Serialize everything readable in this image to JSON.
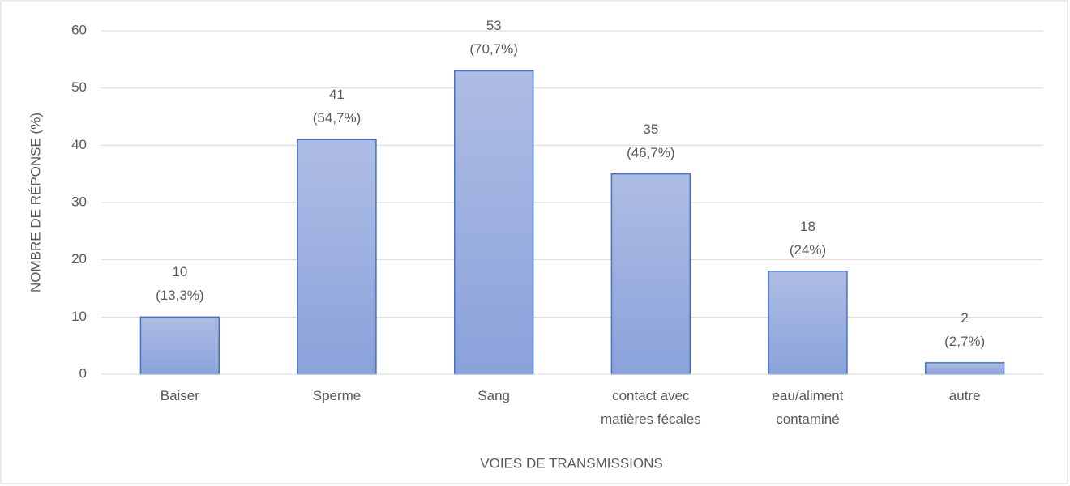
{
  "chart_data": {
    "type": "bar",
    "x_label": "VOIES DE TRANSMISSIONS",
    "y_label": "NOMBRE DE RÉPONSE (%)",
    "categories": [
      "Baiser",
      "Sperme",
      "Sang",
      "contact avec\nmatières fécales",
      "eau/aliment\ncontaminé",
      "autre"
    ],
    "values": [
      10,
      41,
      53,
      35,
      18,
      2
    ],
    "value_labels": [
      "10\n(13,3%)",
      "41\n(54,7%)",
      "53\n(70,7%)",
      "35\n(46,7%)",
      "18\n(24%)",
      "2\n(2,7%)"
    ],
    "color": "#4472c4",
    "ylim": [
      0,
      60
    ],
    "yticks": [
      0,
      10,
      20,
      30,
      40,
      50,
      60
    ],
    "grid": true
  }
}
